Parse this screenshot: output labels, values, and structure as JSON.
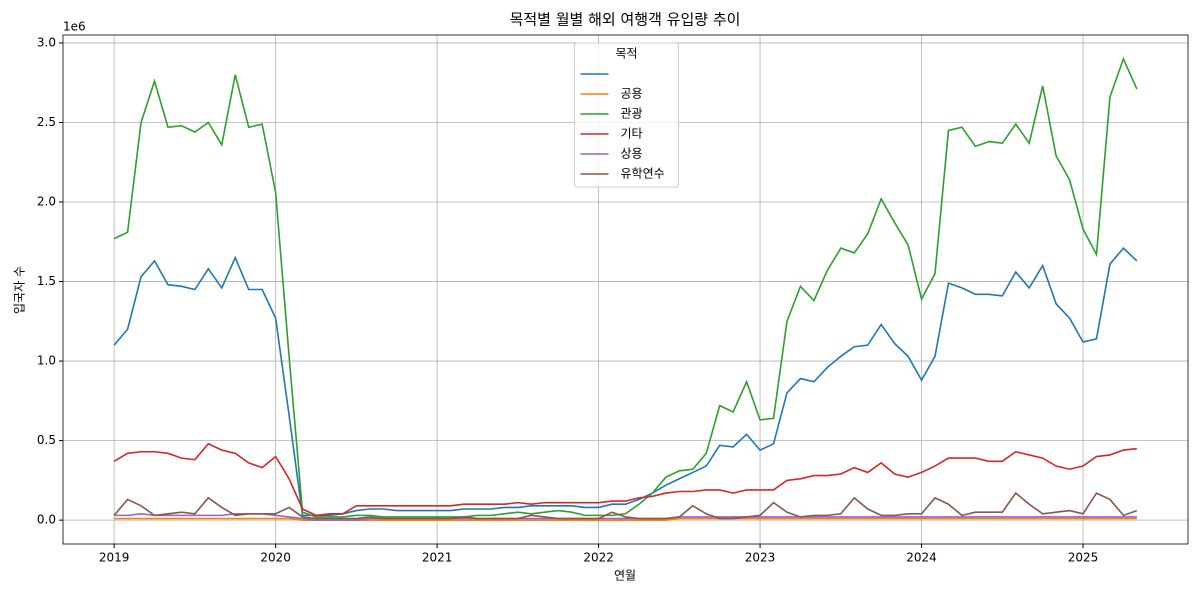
{
  "chart_data": {
    "type": "line",
    "title": "목적별 월별 해외 여행객 유입량 추이",
    "xlabel": "연월",
    "ylabel": "입국자 수",
    "y_offset_label": "1e6",
    "legend_title": "목적",
    "legend": "upper center",
    "grid": true,
    "x": [
      "2019-01",
      "2019-02",
      "2019-03",
      "2019-04",
      "2019-05",
      "2019-06",
      "2019-07",
      "2019-08",
      "2019-09",
      "2019-10",
      "2019-11",
      "2019-12",
      "2020-01",
      "2020-02",
      "2020-03",
      "2020-04",
      "2020-05",
      "2020-06",
      "2020-07",
      "2020-08",
      "2020-09",
      "2020-10",
      "2020-11",
      "2020-12",
      "2021-01",
      "2021-02",
      "2021-03",
      "2021-04",
      "2021-05",
      "2021-06",
      "2021-07",
      "2021-08",
      "2021-09",
      "2021-10",
      "2021-11",
      "2021-12",
      "2022-01",
      "2022-02",
      "2022-03",
      "2022-04",
      "2022-05",
      "2022-06",
      "2022-07",
      "2022-08",
      "2022-09",
      "2022-10",
      "2022-11",
      "2022-12",
      "2023-01",
      "2023-02",
      "2023-03",
      "2023-04",
      "2023-05",
      "2023-06",
      "2023-07",
      "2023-08",
      "2023-09",
      "2023-10",
      "2023-11",
      "2023-12",
      "2024-01",
      "2024-02",
      "2024-03",
      "2024-04",
      "2024-05",
      "2024-06",
      "2024-07",
      "2024-08",
      "2024-09",
      "2024-10",
      "2024-11",
      "2024-12",
      "2025-01",
      "2025-02",
      "2025-03",
      "2025-04",
      "2025-05"
    ],
    "xticks": [
      {
        "value": "2019-01",
        "label": "2019"
      },
      {
        "value": "2020-01",
        "label": "2020"
      },
      {
        "value": "2021-01",
        "label": "2021"
      },
      {
        "value": "2022-01",
        "label": "2022"
      },
      {
        "value": "2023-01",
        "label": "2023"
      },
      {
        "value": "2024-01",
        "label": "2024"
      },
      {
        "value": "2025-01",
        "label": "2025"
      }
    ],
    "ylim": [
      -0.15,
      3.05
    ],
    "yticks": [
      {
        "value": 0,
        "label": "0.0"
      },
      0.5,
      {
        "value": 1,
        "label": "1.0"
      },
      1.5,
      {
        "value": 2,
        "label": "2.0"
      },
      2.5,
      {
        "value": 3,
        "label": "3.0"
      }
    ],
    "series": [
      {
        "name": null,
        "color": "#1f77b4",
        "values": [
          1.1,
          1.2,
          1.53,
          1.63,
          1.48,
          1.47,
          1.45,
          1.58,
          1.46,
          1.65,
          1.45,
          1.45,
          1.27,
          0.66,
          0.03,
          0.03,
          0.03,
          0.04,
          0.06,
          0.07,
          0.07,
          0.06,
          0.06,
          0.06,
          0.06,
          0.06,
          0.07,
          0.07,
          0.07,
          0.08,
          0.08,
          0.09,
          0.09,
          0.09,
          0.09,
          0.08,
          0.08,
          0.1,
          0.1,
          0.13,
          0.17,
          0.22,
          0.26,
          0.3,
          0.34,
          0.47,
          0.46,
          0.54,
          0.44,
          0.48,
          0.8,
          0.89,
          0.87,
          0.96,
          1.03,
          1.09,
          1.1,
          1.23,
          1.11,
          1.03,
          0.88,
          1.03,
          1.49,
          1.46,
          1.42,
          1.42,
          1.41,
          1.56,
          1.46,
          1.6,
          1.36,
          1.27,
          1.12,
          1.14,
          1.61,
          1.71,
          1.63
        ]
      },
      {
        "name": "공용",
        "color": "#ff7f0e",
        "values": [
          0.01,
          0.01,
          0.01,
          0.01,
          0.01,
          0.01,
          0.01,
          0.01,
          0.01,
          0.01,
          0.01,
          0.01,
          0.01,
          0.01,
          0.0,
          0.0,
          0.0,
          0.0,
          0.0,
          0.0,
          0.0,
          0.0,
          0.0,
          0.0,
          0.0,
          0.0,
          0.0,
          0.0,
          0.0,
          0.0,
          0.0,
          0.0,
          0.0,
          0.0,
          0.0,
          0.0,
          0.0,
          0.0,
          0.0,
          0.0,
          0.0,
          0.0,
          0.01,
          0.01,
          0.01,
          0.01,
          0.01,
          0.01,
          0.01,
          0.01,
          0.01,
          0.01,
          0.01,
          0.01,
          0.01,
          0.01,
          0.01,
          0.01,
          0.01,
          0.01,
          0.01,
          0.01,
          0.01,
          0.01,
          0.01,
          0.01,
          0.01,
          0.01,
          0.01,
          0.01,
          0.01,
          0.01,
          0.01,
          0.01,
          0.01,
          0.01,
          0.01
        ]
      },
      {
        "name": "관광",
        "color": "#2ca02c",
        "values": [
          1.77,
          1.81,
          2.5,
          2.76,
          2.47,
          2.48,
          2.44,
          2.5,
          2.36,
          2.8,
          2.47,
          2.49,
          2.06,
          1.03,
          0.05,
          0.02,
          0.02,
          0.02,
          0.03,
          0.03,
          0.02,
          0.02,
          0.02,
          0.02,
          0.02,
          0.02,
          0.02,
          0.03,
          0.03,
          0.04,
          0.05,
          0.04,
          0.05,
          0.06,
          0.05,
          0.03,
          0.03,
          0.03,
          0.04,
          0.1,
          0.17,
          0.27,
          0.31,
          0.32,
          0.42,
          0.72,
          0.68,
          0.87,
          0.63,
          0.64,
          1.25,
          1.47,
          1.38,
          1.57,
          1.71,
          1.68,
          1.8,
          2.02,
          1.87,
          1.73,
          1.39,
          1.55,
          2.45,
          2.47,
          2.35,
          2.38,
          2.37,
          2.49,
          2.37,
          2.73,
          2.29,
          2.14,
          1.83,
          1.67,
          2.66,
          2.9,
          2.71
        ]
      },
      {
        "name": "기타",
        "color": "#d62728",
        "values": [
          0.37,
          0.42,
          0.43,
          0.43,
          0.42,
          0.39,
          0.38,
          0.48,
          0.44,
          0.42,
          0.36,
          0.33,
          0.4,
          0.26,
          0.07,
          0.03,
          0.04,
          0.04,
          0.09,
          0.09,
          0.09,
          0.09,
          0.09,
          0.09,
          0.09,
          0.09,
          0.1,
          0.1,
          0.1,
          0.1,
          0.11,
          0.1,
          0.11,
          0.11,
          0.11,
          0.11,
          0.11,
          0.12,
          0.12,
          0.14,
          0.15,
          0.17,
          0.18,
          0.18,
          0.19,
          0.19,
          0.17,
          0.19,
          0.19,
          0.19,
          0.25,
          0.26,
          0.28,
          0.28,
          0.29,
          0.33,
          0.3,
          0.36,
          0.29,
          0.27,
          0.3,
          0.34,
          0.39,
          0.39,
          0.39,
          0.37,
          0.37,
          0.43,
          0.41,
          0.39,
          0.34,
          0.32,
          0.34,
          0.4,
          0.41,
          0.44,
          0.45
        ]
      },
      {
        "name": "상용",
        "color": "#9467bd",
        "values": [
          0.03,
          0.03,
          0.04,
          0.03,
          0.03,
          0.03,
          0.03,
          0.03,
          0.03,
          0.04,
          0.04,
          0.04,
          0.03,
          0.02,
          0.01,
          0.0,
          0.0,
          0.0,
          0.0,
          0.01,
          0.01,
          0.01,
          0.01,
          0.01,
          0.01,
          0.01,
          0.01,
          0.01,
          0.01,
          0.01,
          0.01,
          0.01,
          0.01,
          0.01,
          0.01,
          0.01,
          0.01,
          0.01,
          0.01,
          0.01,
          0.01,
          0.01,
          0.02,
          0.02,
          0.02,
          0.02,
          0.02,
          0.02,
          0.02,
          0.02,
          0.02,
          0.02,
          0.02,
          0.02,
          0.02,
          0.02,
          0.02,
          0.02,
          0.02,
          0.02,
          0.02,
          0.02,
          0.02,
          0.02,
          0.02,
          0.02,
          0.02,
          0.02,
          0.02,
          0.02,
          0.02,
          0.02,
          0.02,
          0.02,
          0.02,
          0.02,
          0.02
        ]
      },
      {
        "name": "유학연수",
        "color": "#8c564b",
        "values": [
          0.03,
          0.13,
          0.09,
          0.03,
          0.04,
          0.05,
          0.04,
          0.14,
          0.08,
          0.03,
          0.04,
          0.04,
          0.04,
          0.08,
          0.02,
          0.01,
          0.01,
          0.01,
          0.01,
          0.02,
          0.01,
          0.01,
          0.01,
          0.01,
          0.01,
          0.01,
          0.02,
          0.01,
          0.01,
          0.01,
          0.01,
          0.03,
          0.02,
          0.01,
          0.01,
          0.01,
          0.01,
          0.05,
          0.02,
          0.01,
          0.01,
          0.01,
          0.02,
          0.09,
          0.04,
          0.01,
          0.01,
          0.02,
          0.03,
          0.11,
          0.05,
          0.02,
          0.03,
          0.03,
          0.04,
          0.14,
          0.07,
          0.03,
          0.03,
          0.04,
          0.04,
          0.14,
          0.1,
          0.03,
          0.05,
          0.05,
          0.05,
          0.17,
          0.1,
          0.04,
          0.05,
          0.06,
          0.04,
          0.17,
          0.13,
          0.03,
          0.06
        ]
      }
    ]
  }
}
